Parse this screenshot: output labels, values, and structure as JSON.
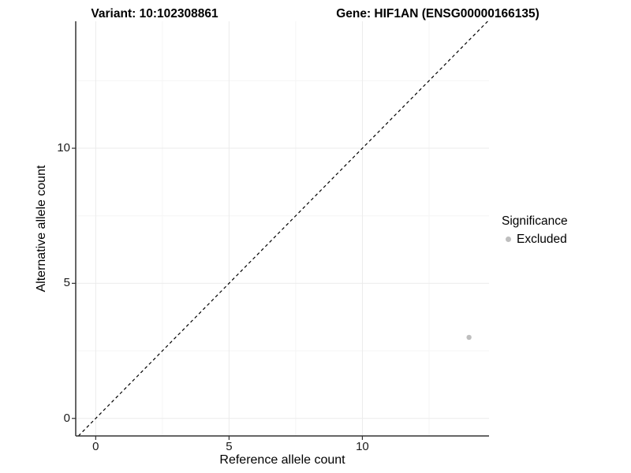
{
  "figure": {
    "title_left": "Variant: 10:102308861",
    "title_right": "Gene: HIF1AN (ENSG00000166135)"
  },
  "chart_data": {
    "type": "scatter",
    "xlabel": "Reference allele count",
    "ylabel": "Alternative allele count",
    "xlim": [
      -0.75,
      14.75
    ],
    "ylim": [
      -0.65,
      14.7
    ],
    "x_ticks": [
      0,
      5,
      10
    ],
    "y_ticks": [
      0,
      5,
      10
    ],
    "x_minor_gridlines": [
      2.5,
      7.5,
      12.5
    ],
    "y_minor_gridlines": [
      2.5,
      7.5,
      12.5
    ],
    "grid": true,
    "points": [
      {
        "x": 14,
        "y": 3,
        "series": "Excluded"
      }
    ],
    "reference_line": {
      "type": "identity",
      "slope": 1,
      "intercept": 0,
      "style": "dashed"
    },
    "legend": {
      "position": "right",
      "title": "Significance",
      "items": [
        {
          "label": "Excluded",
          "color": "#bebebe"
        }
      ]
    },
    "colors": {
      "point": "#bebebe",
      "grid_major": "#ebebeb",
      "grid_minor": "#f5f5f5",
      "axis_line": "#333333",
      "dashed_line": "#000000",
      "text": "#000000"
    }
  }
}
